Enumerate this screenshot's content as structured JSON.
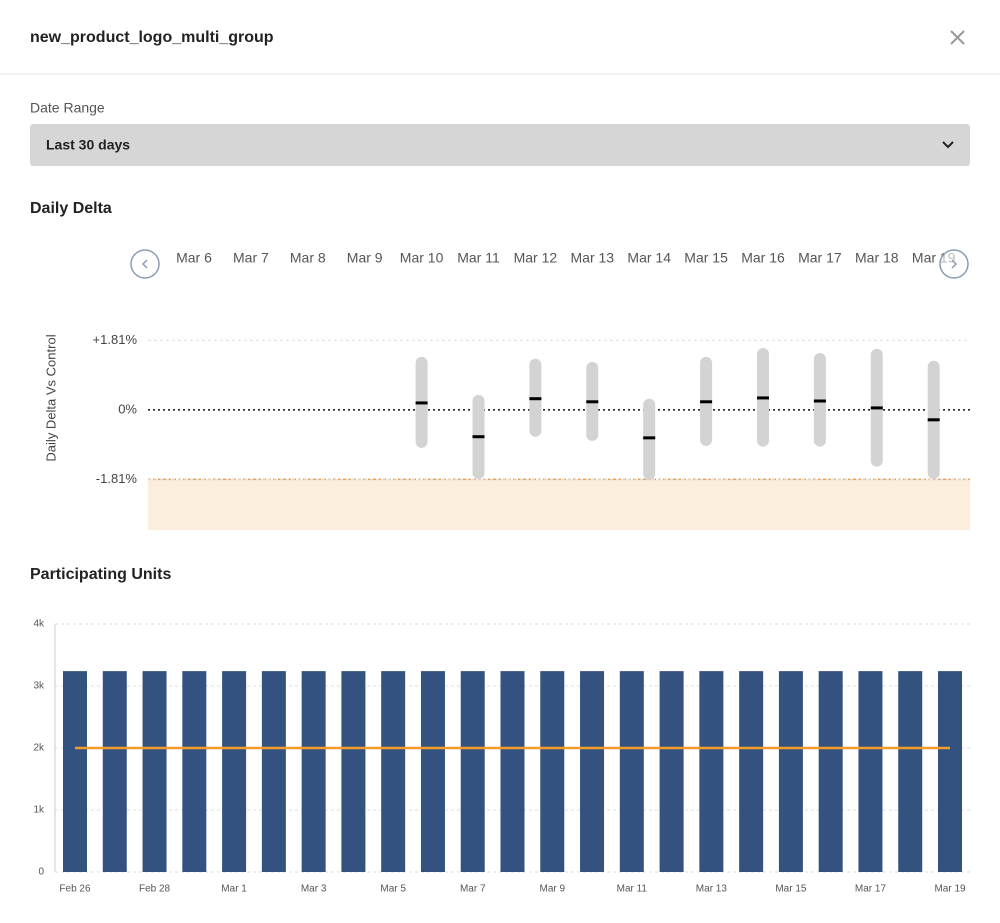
{
  "header": {
    "title": "new_product_logo_multi_group"
  },
  "date_range": {
    "label": "Date Range",
    "selected": "Last 30 days"
  },
  "chart_data": [
    {
      "type": "interval",
      "title": "Daily Delta",
      "ylabel": "Daily Delta Vs Control",
      "categories": [
        "Mar 6",
        "Mar 7",
        "Mar 8",
        "Mar 9",
        "Mar 10",
        "Mar 11",
        "Mar 12",
        "Mar 13",
        "Mar 14",
        "Mar 15",
        "Mar 16",
        "Mar 17",
        "Mar 18",
        "Mar 19"
      ],
      "values": [
        null,
        null,
        null,
        null,
        0.18,
        -0.7,
        0.29,
        0.21,
        -0.73,
        0.21,
        0.31,
        0.23,
        0.05,
        -0.26
      ],
      "lower": [
        null,
        null,
        null,
        null,
        -0.99,
        -1.8,
        -0.7,
        -0.81,
        -1.82,
        -0.94,
        -0.96,
        -0.96,
        -1.48,
        -1.8
      ],
      "upper": [
        null,
        null,
        null,
        null,
        1.38,
        0.39,
        1.33,
        1.25,
        0.29,
        1.38,
        1.61,
        1.48,
        1.59,
        1.28
      ],
      "color": "#d3d3d3",
      "mean_color": "#000000",
      "threshold": -1.81,
      "threshold_color": "#f0a040",
      "ylim": [
        -3.13,
        2.34
      ],
      "yticks": [
        {
          "value": 1.81,
          "label": "+1.81%"
        },
        {
          "value": 0,
          "label": "0%"
        },
        {
          "value": -1.81,
          "label": "-1.81%"
        }
      ],
      "grid": true
    },
    {
      "type": "bar",
      "title": "Participating Units",
      "categories": [
        "Feb 26",
        null,
        "Feb 28",
        null,
        "Mar 1",
        null,
        "Mar 3",
        null,
        "Mar 5",
        null,
        "Mar 7",
        null,
        "Mar 9",
        null,
        "Mar 11",
        null,
        "Mar 13",
        null,
        "Mar 15",
        null,
        "Mar 17",
        null,
        "Mar 19"
      ],
      "series": [
        {
          "type": "bar",
          "color": "#34527f",
          "values": [
            3240,
            3240,
            3240,
            3240,
            3240,
            3240,
            3240,
            3240,
            3240,
            3240,
            3240,
            3240,
            3240,
            3240,
            3240,
            3240,
            3240,
            3240,
            3240,
            3240,
            3240,
            3240,
            3240
          ]
        },
        {
          "type": "line",
          "color": "#f39c28",
          "values": [
            2000,
            2000,
            2000,
            2000,
            2000,
            2000,
            2000,
            2000,
            2000,
            2000,
            2000,
            2000,
            2000,
            2000,
            2000,
            2000,
            2000,
            2000,
            2000,
            2000,
            2000,
            2000,
            2000
          ]
        }
      ],
      "ylim": [
        0,
        4000
      ],
      "yticks": [
        0,
        {
          "value": 1000,
          "label": "1k"
        },
        {
          "value": 2000,
          "label": "2k"
        },
        {
          "value": 3000,
          "label": "3k"
        },
        {
          "value": 4000,
          "label": "4k"
        }
      ],
      "grid": true
    }
  ]
}
